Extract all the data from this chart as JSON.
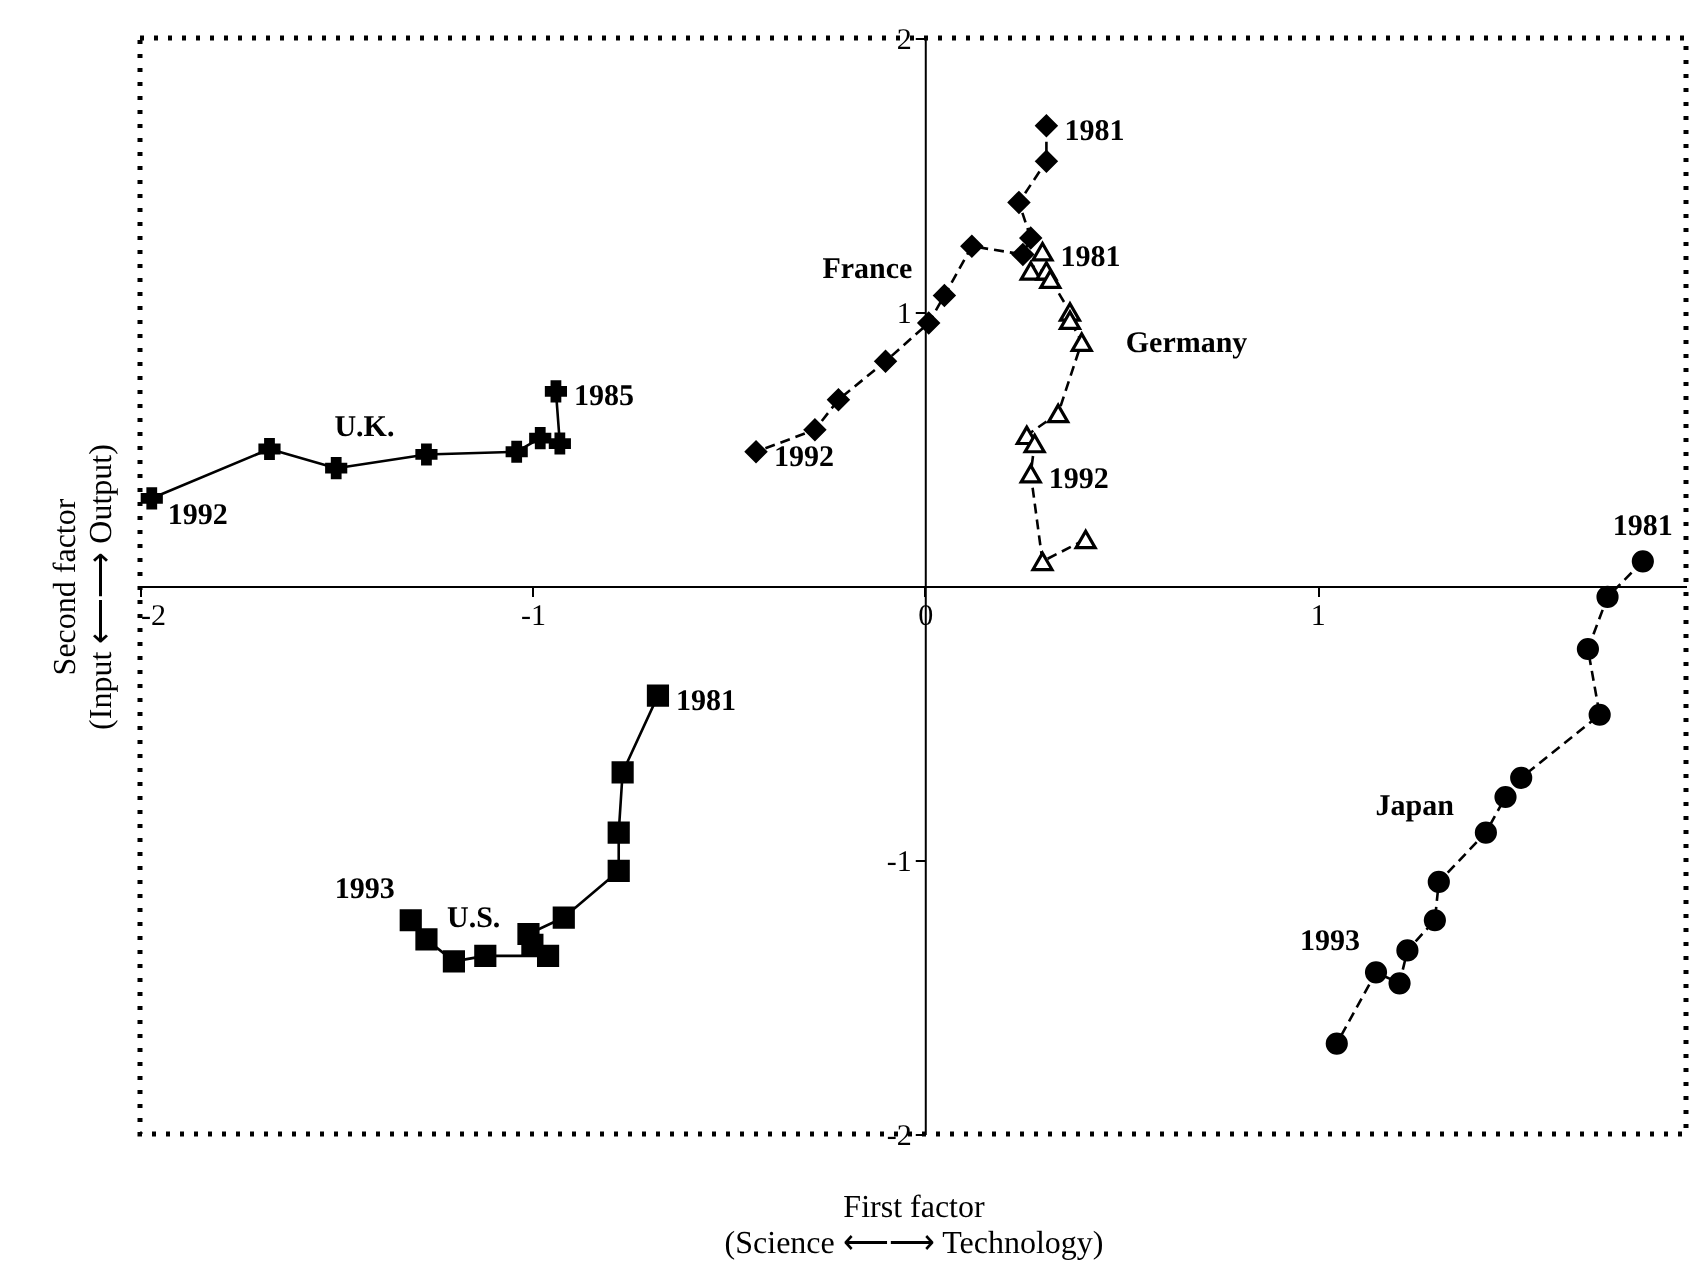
{
  "chart_data": {
    "type": "line",
    "xlabel": "First factor\n(Science ⟵⟶ Technology)",
    "ylabel": "Second factor\n(Input ⟵⟶ Output)",
    "xlim": [
      -2,
      1.94
    ],
    "ylim": [
      -2,
      2
    ],
    "xticks": [
      -2,
      -1,
      0,
      1
    ],
    "yticks": [
      -2,
      -1,
      1,
      2
    ],
    "grid": false,
    "series": [
      {
        "name": "U.K.",
        "color": "#000000",
        "marker": "cross",
        "line_style": "solid",
        "x": [
          -0.94,
          -0.93,
          -0.98,
          -1.04,
          -1.27,
          -1.5,
          -1.67,
          -1.97
        ],
        "values": [
          0.71,
          0.52,
          0.54,
          0.49,
          0.48,
          0.43,
          0.5,
          0.32
        ]
      },
      {
        "name": "France",
        "color": "#000000",
        "marker": "diamond",
        "line_style": "dashed",
        "x": [
          0.31,
          0.31,
          0.24,
          0.27,
          0.25,
          0.12,
          0.05,
          0.01,
          -0.1,
          -0.22,
          -0.28,
          -0.43
        ],
        "values": [
          1.68,
          1.55,
          1.4,
          1.27,
          1.21,
          1.24,
          1.06,
          0.96,
          0.82,
          0.68,
          0.57,
          0.49
        ]
      },
      {
        "name": "Germany",
        "color": "#000000",
        "marker": "triangle",
        "line_style": "dashed",
        "x": [
          0.3,
          0.27,
          0.31,
          0.32,
          0.37,
          0.37,
          0.4,
          0.34,
          0.26,
          0.28,
          0.27,
          0.3,
          0.41
        ],
        "values": [
          1.22,
          1.15,
          1.15,
          1.12,
          1.0,
          0.97,
          0.89,
          0.63,
          0.55,
          0.52,
          0.41,
          0.09,
          0.17
        ]
      },
      {
        "name": "U.S.",
        "color": "#000000",
        "marker": "square",
        "line_style": "solid",
        "x": [
          -0.68,
          -0.77,
          -0.78,
          -0.78,
          -0.92,
          -1.01,
          -1.0,
          -0.96,
          -1.12,
          -1.2,
          -1.27,
          -1.31
        ],
        "values": [
          -0.4,
          -0.68,
          -0.9,
          -1.04,
          -1.21,
          -1.27,
          -1.31,
          -1.35,
          -1.35,
          -1.37,
          -1.29,
          -1.22
        ]
      },
      {
        "name": "Japan",
        "color": "#000000",
        "marker": "circle",
        "line_style": "dashed",
        "x": [
          1.83,
          1.74,
          1.69,
          1.72,
          1.52,
          1.48,
          1.43,
          1.31,
          1.3,
          1.23,
          1.21,
          1.15,
          1.05
        ],
        "values": [
          0.09,
          -0.04,
          -0.23,
          -0.47,
          -0.7,
          -0.77,
          -0.9,
          -1.08,
          -1.22,
          -1.33,
          -1.45,
          -1.41,
          -1.67
        ]
      }
    ],
    "annotations": [
      {
        "text": "1992",
        "x": -1.97,
        "y": 0.32
      },
      {
        "text": "1985",
        "x": -0.94,
        "y": 0.71
      },
      {
        "text": "1981",
        "x": 0.31,
        "y": 1.68
      },
      {
        "text": "1992",
        "x": -0.43,
        "y": 0.49
      },
      {
        "text": "1981",
        "x": 0.3,
        "y": 1.22
      },
      {
        "text": "1992",
        "x": 0.27,
        "y": 0.41
      },
      {
        "text": "1981",
        "x": -0.68,
        "y": -0.4
      },
      {
        "text": "1993",
        "x": -1.31,
        "y": -1.22
      },
      {
        "text": "1981",
        "x": 1.83,
        "y": 0.09
      },
      {
        "text": "1993",
        "x": 1.15,
        "y": -1.41
      }
    ]
  }
}
